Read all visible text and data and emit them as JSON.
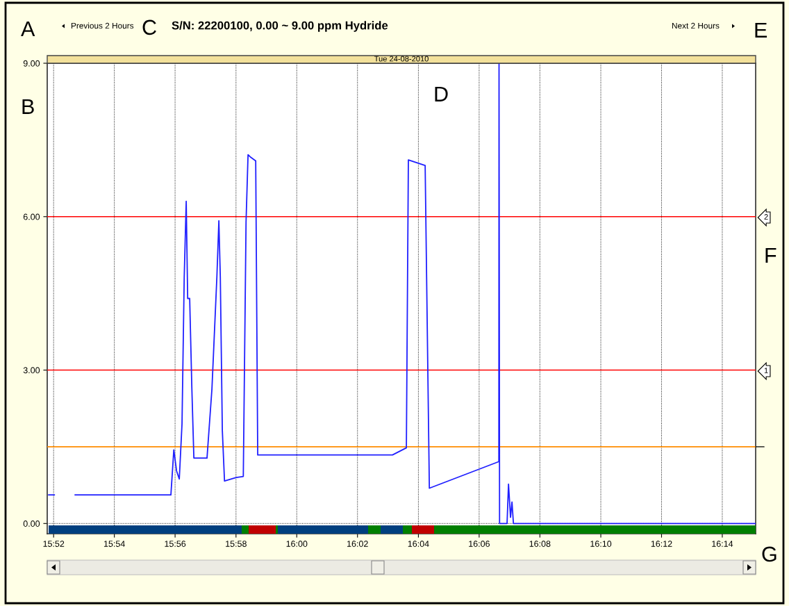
{
  "chart_data": {
    "type": "line",
    "title": "S/N: 22200100, 0.00 ~ 9.00 ppm Hydride",
    "subtitle": "Tue 24-08-2010",
    "annotations": [
      "A",
      "B",
      "C",
      "D",
      "E",
      "F",
      "G",
      "Previous 2 Hours",
      "Next 2 Hours",
      "2",
      "1"
    ],
    "x": [
      15.864,
      15.8671,
      15.87,
      15.8785,
      15.931,
      15.9326,
      15.9341,
      15.9356,
      15.9371,
      15.9383,
      15.9394,
      15.9402,
      15.9413,
      15.9425,
      15.9436,
      15.9478,
      15.9508,
      15.9535,
      15.9562,
      15.9573,
      15.9581,
      15.9592,
      15.9604,
      15.9668,
      15.9707,
      15.9722,
      15.9733,
      15.9745,
      15.9775,
      15.9786,
      16.0384,
      16.0525,
      16.0601,
      16.0612,
      16.0704,
      16.0727,
      16.1108,
      16.1109,
      16.1112,
      16.1153,
      16.1161,
      16.1172,
      16.118,
      16.1188,
      16.2516
    ],
    "series": [
      {
        "color": "#2020ff",
        "values": [
          0.56,
          0.56,
          null,
          0.56,
          0.56,
          1.44,
          1.03,
          0.87,
          1.95,
          4.81,
          6.3,
          4.4,
          4.4,
          2.63,
          1.28,
          1.28,
          1.28,
          2.63,
          4.81,
          5.92,
          4.81,
          1.82,
          0.83,
          0.9,
          0.92,
          5.89,
          7.21,
          7.17,
          7.09,
          1.34,
          1.34,
          1.34,
          1.48,
          7.11,
          7.0,
          0.69,
          1.21,
          9.0,
          0.0,
          0.0,
          0.77,
          0.12,
          0.42,
          0.0,
          0.0
        ]
      }
    ],
    "xlim": [
      15.8632,
      16.2516
    ],
    "ylim": [
      -0.2,
      9.0
    ],
    "xticks": [
      {
        "value": 15.8667,
        "label": "15:52"
      },
      {
        "value": 15.9,
        "label": "15:54"
      },
      {
        "value": 15.9333,
        "label": "15:56"
      },
      {
        "value": 15.9667,
        "label": "15:58"
      },
      {
        "value": 16.0,
        "label": "16:00"
      },
      {
        "value": 16.0333,
        "label": "16:02"
      },
      {
        "value": 16.0667,
        "label": "16:04"
      },
      {
        "value": 16.1,
        "label": "16:06"
      },
      {
        "value": 16.1333,
        "label": "16:08"
      },
      {
        "value": 16.1667,
        "label": "16:10"
      },
      {
        "value": 16.2,
        "label": "16:12"
      },
      {
        "value": 16.2333,
        "label": "16:14"
      }
    ],
    "yticks": [
      {
        "value": 0,
        "label": "0.00"
      },
      {
        "value": 3,
        "label": "3.00"
      },
      {
        "value": 6,
        "label": "6.00"
      },
      {
        "value": 9,
        "label": "9.00"
      }
    ],
    "ref_lines": [
      {
        "axis": "y",
        "value": 6,
        "color": "#ff0000"
      },
      {
        "axis": "y",
        "value": 3,
        "color": "#ff0000"
      },
      {
        "axis": "y",
        "value": 1.5,
        "color": "#ff8c00"
      }
    ],
    "grid": true
  }
}
